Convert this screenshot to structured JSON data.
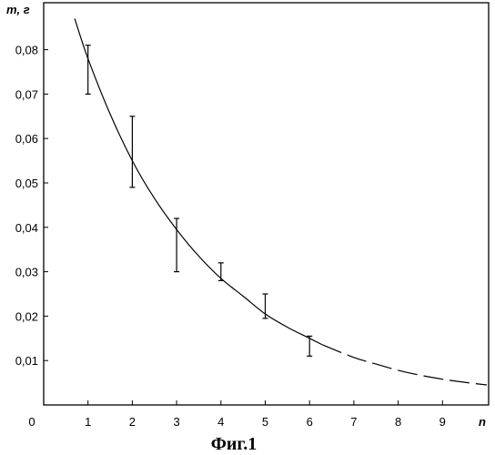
{
  "chart_data": {
    "type": "scatter",
    "title": "",
    "xlabel": "n",
    "ylabel": "m, г",
    "origin_label": "0",
    "x_ticks": [
      "1",
      "2",
      "3",
      "4",
      "5",
      "6",
      "7",
      "8",
      "9"
    ],
    "y_ticks": [
      "0,01",
      "0,02",
      "0,03",
      "0,04",
      "0,05",
      "0,06",
      "0,07",
      "0,08"
    ],
    "xlim": [
      0,
      10
    ],
    "ylim": [
      0,
      0.09
    ],
    "grid": false,
    "legend": "none",
    "measurements": {
      "x": [
        1,
        2,
        3,
        4,
        5,
        6
      ],
      "y": [
        0.078,
        0.055,
        0.039,
        0.0295,
        0.022,
        0.013
      ],
      "error_low": [
        0.07,
        0.049,
        0.03,
        0.028,
        0.0195,
        0.011
      ],
      "error_high": [
        0.081,
        0.065,
        0.042,
        0.032,
        0.025,
        0.0155
      ]
    },
    "fit_curve": {
      "solid": {
        "x": [
          0.7,
          1,
          1.5,
          2,
          2.5,
          3,
          3.5,
          4,
          4.5,
          5,
          5.5,
          6,
          6.3
        ],
        "y": [
          0.087,
          0.078,
          0.0655,
          0.055,
          0.0465,
          0.0395,
          0.0335,
          0.0285,
          0.0245,
          0.0205,
          0.0175,
          0.015,
          0.0135
        ]
      },
      "dashed": {
        "x": [
          6.3,
          7,
          7.5,
          8,
          8.5,
          9,
          9.5,
          10
        ],
        "y": [
          0.0135,
          0.0107,
          0.0092,
          0.0078,
          0.0067,
          0.0058,
          0.0051,
          0.0045
        ]
      }
    }
  },
  "caption": "Фиг.1"
}
